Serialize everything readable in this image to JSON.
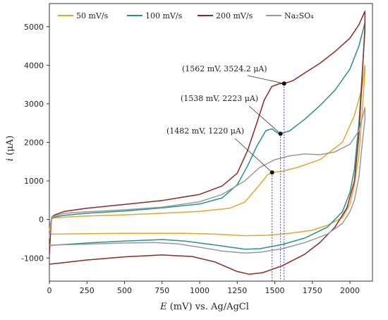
{
  "chart_data": {
    "type": "line",
    "title": "",
    "xlabel_var": "E",
    "xlabel_rest": " (mV) vs. Ag/AgCl",
    "ylabel_var": "i",
    "ylabel_rest": " (μA)",
    "xlim": [
      0,
      2150
    ],
    "ylim": [
      -1600,
      5600
    ],
    "xticks": [
      0,
      250,
      500,
      750,
      1000,
      1250,
      1500,
      1750,
      2000
    ],
    "yticks": [
      -1000,
      0,
      1000,
      2000,
      3000,
      4000,
      5000
    ],
    "legend_position": "top",
    "series": [
      {
        "name": "50 mV/s",
        "color": "#e6a52e",
        "points": [
          [
            0,
            -300
          ],
          [
            10,
            -50
          ],
          [
            15,
            20
          ],
          [
            30,
            40
          ],
          [
            100,
            60
          ],
          [
            250,
            90
          ],
          [
            500,
            120
          ],
          [
            750,
            160
          ],
          [
            1000,
            210
          ],
          [
            1200,
            290
          ],
          [
            1300,
            450
          ],
          [
            1400,
            900
          ],
          [
            1450,
            1150
          ],
          [
            1482,
            1220
          ],
          [
            1550,
            1250
          ],
          [
            1650,
            1350
          ],
          [
            1800,
            1550
          ],
          [
            1950,
            2000
          ],
          [
            2030,
            2700
          ],
          [
            2080,
            3400
          ],
          [
            2100,
            4000
          ],
          [
            2100,
            3850
          ],
          [
            2080,
            2700
          ],
          [
            2060,
            1700
          ],
          [
            2030,
            900
          ],
          [
            2000,
            400
          ],
          [
            1950,
            50
          ],
          [
            1850,
            -150
          ],
          [
            1750,
            -280
          ],
          [
            1600,
            -360
          ],
          [
            1450,
            -410
          ],
          [
            1300,
            -420
          ],
          [
            1100,
            -380
          ],
          [
            900,
            -360
          ],
          [
            500,
            -360
          ],
          [
            200,
            -370
          ],
          [
            50,
            -380
          ],
          [
            0,
            -380
          ]
        ]
      },
      {
        "name": "100 mV/s",
        "color": "#2a8f8f",
        "points": [
          [
            0,
            -480
          ],
          [
            10,
            -100
          ],
          [
            15,
            30
          ],
          [
            30,
            60
          ],
          [
            100,
            110
          ],
          [
            250,
            160
          ],
          [
            500,
            220
          ],
          [
            750,
            300
          ],
          [
            1000,
            400
          ],
          [
            1150,
            560
          ],
          [
            1250,
            900
          ],
          [
            1320,
            1400
          ],
          [
            1380,
            1900
          ],
          [
            1440,
            2300
          ],
          [
            1480,
            2350
          ],
          [
            1520,
            2240
          ],
          [
            1538,
            2223
          ],
          [
            1600,
            2300
          ],
          [
            1700,
            2600
          ],
          [
            1800,
            2950
          ],
          [
            1900,
            3350
          ],
          [
            2000,
            3900
          ],
          [
            2060,
            4500
          ],
          [
            2100,
            5100
          ],
          [
            2100,
            4900
          ],
          [
            2080,
            3700
          ],
          [
            2060,
            2500
          ],
          [
            2030,
            1300
          ],
          [
            2000,
            700
          ],
          [
            1950,
            200
          ],
          [
            1850,
            -200
          ],
          [
            1700,
            -480
          ],
          [
            1550,
            -650
          ],
          [
            1400,
            -760
          ],
          [
            1300,
            -770
          ],
          [
            1100,
            -660
          ],
          [
            900,
            -560
          ],
          [
            750,
            -520
          ],
          [
            500,
            -560
          ],
          [
            250,
            -610
          ],
          [
            50,
            -660
          ],
          [
            0,
            -680
          ]
        ]
      },
      {
        "name": "200 mV/s",
        "color": "#8a2a24",
        "points": [
          [
            0,
            -900
          ],
          [
            10,
            -200
          ],
          [
            15,
            50
          ],
          [
            30,
            110
          ],
          [
            100,
            210
          ],
          [
            250,
            290
          ],
          [
            500,
            390
          ],
          [
            750,
            490
          ],
          [
            1000,
            650
          ],
          [
            1150,
            870
          ],
          [
            1250,
            1200
          ],
          [
            1320,
            1800
          ],
          [
            1380,
            2500
          ],
          [
            1430,
            3100
          ],
          [
            1480,
            3450
          ],
          [
            1530,
            3520
          ],
          [
            1562,
            3524
          ],
          [
            1620,
            3600
          ],
          [
            1700,
            3800
          ],
          [
            1800,
            4050
          ],
          [
            1900,
            4350
          ],
          [
            2000,
            4700
          ],
          [
            2060,
            5050
          ],
          [
            2100,
            5400
          ],
          [
            2100,
            5000
          ],
          [
            2080,
            3600
          ],
          [
            2060,
            2200
          ],
          [
            2030,
            1000
          ],
          [
            1980,
            300
          ],
          [
            1900,
            -200
          ],
          [
            1800,
            -600
          ],
          [
            1700,
            -900
          ],
          [
            1550,
            -1200
          ],
          [
            1420,
            -1380
          ],
          [
            1330,
            -1420
          ],
          [
            1250,
            -1350
          ],
          [
            1100,
            -1100
          ],
          [
            950,
            -960
          ],
          [
            750,
            -920
          ],
          [
            500,
            -970
          ],
          [
            250,
            -1050
          ],
          [
            50,
            -1140
          ],
          [
            0,
            -1160
          ]
        ]
      },
      {
        "name": "Na₂SO₄",
        "color": "#999999",
        "points": [
          [
            0,
            -500
          ],
          [
            10,
            -100
          ],
          [
            15,
            40
          ],
          [
            30,
            90
          ],
          [
            100,
            160
          ],
          [
            250,
            200
          ],
          [
            500,
            250
          ],
          [
            750,
            320
          ],
          [
            1000,
            460
          ],
          [
            1150,
            650
          ],
          [
            1300,
            1000
          ],
          [
            1400,
            1350
          ],
          [
            1500,
            1550
          ],
          [
            1600,
            1650
          ],
          [
            1700,
            1700
          ],
          [
            1800,
            1680
          ],
          [
            1900,
            1750
          ],
          [
            2000,
            1950
          ],
          [
            2060,
            2300
          ],
          [
            2100,
            2900
          ],
          [
            2100,
            2600
          ],
          [
            2080,
            1900
          ],
          [
            2060,
            1100
          ],
          [
            2030,
            500
          ],
          [
            2000,
            200
          ],
          [
            1950,
            -100
          ],
          [
            1850,
            -380
          ],
          [
            1700,
            -600
          ],
          [
            1550,
            -760
          ],
          [
            1400,
            -850
          ],
          [
            1300,
            -870
          ],
          [
            1150,
            -820
          ],
          [
            1000,
            -720
          ],
          [
            850,
            -630
          ],
          [
            700,
            -600
          ],
          [
            500,
            -610
          ],
          [
            250,
            -640
          ],
          [
            50,
            -660
          ],
          [
            0,
            -670
          ]
        ]
      }
    ],
    "annotations": [
      {
        "label": "(1562 mV, 3524.2 μA)",
        "x": 1562,
        "y": 3524.2,
        "color": "#3a3ae0"
      },
      {
        "label": "(1538 mV, 2223 μA)",
        "x": 1538,
        "y": 2223,
        "color": "#3a3ae0"
      },
      {
        "label": "(1482 mV, 1220 μA)",
        "x": 1482,
        "y": 1220,
        "color": "#3a3ae0"
      }
    ]
  }
}
